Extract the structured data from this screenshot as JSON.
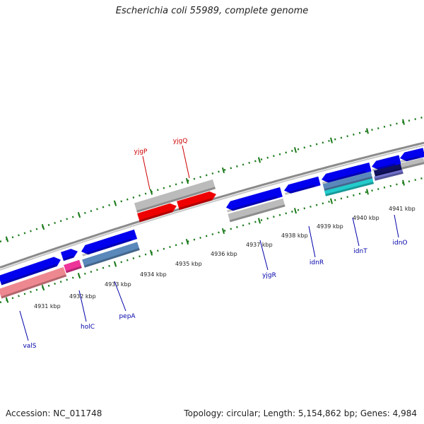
{
  "title": "Escherichia coli 55989, complete genome",
  "footer": {
    "accession": "Accession: NC_011748",
    "summary": "Topology: circular; Length: 5,154,862 bp; Genes: 4,984"
  },
  "colors": {
    "forward_gene": "#0000ee",
    "reverse_gene": "#ee0000",
    "grey_feature": "#bbbbbb",
    "backbone": "#8a8a8a",
    "tick": "#1a7a1a",
    "red_label": "#cc0000",
    "blue_label": "#0000aa"
  },
  "scale": {
    "labels": [
      "4931 kbp",
      "4932 kbp",
      "4933 kbp",
      "4934 kbp",
      "4935 kbp",
      "4936 kbp",
      "4937 kbp",
      "4938 kbp",
      "4939 kbp",
      "4940 kbp",
      "4941 kbp"
    ]
  },
  "gene_labels": {
    "top": [
      "yjgP",
      "yjgQ"
    ],
    "bottom": [
      "valS",
      "holC",
      "pepA",
      "yjgR",
      "idnR",
      "idnT",
      "idnO"
    ]
  }
}
